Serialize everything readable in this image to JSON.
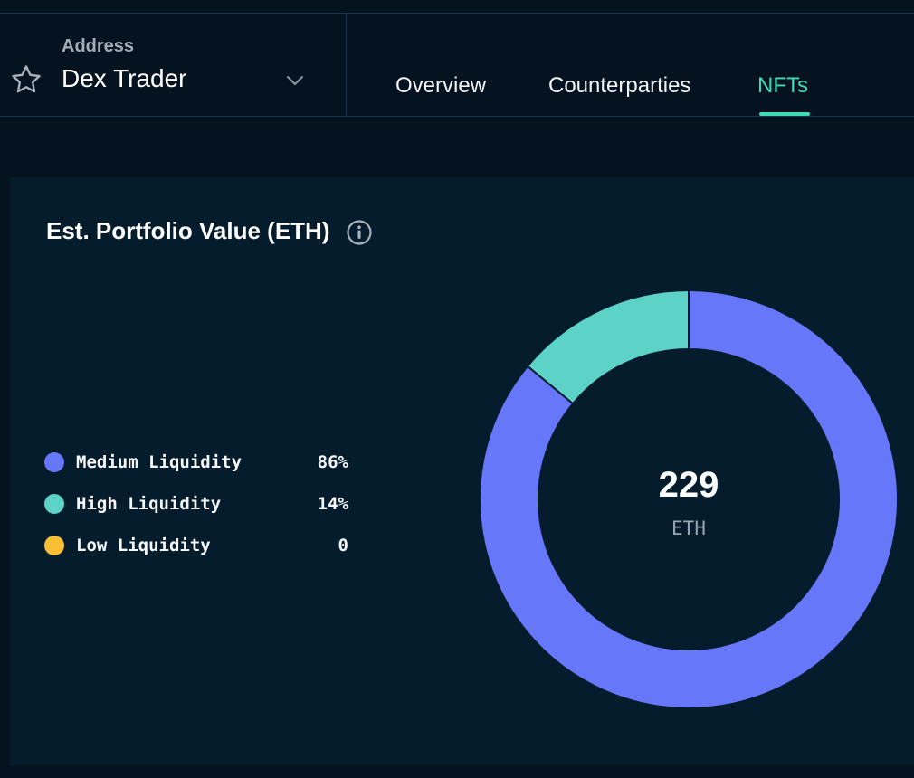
{
  "header": {
    "address_label": "Address",
    "address_name": "Dex Trader",
    "tabs": [
      {
        "label": "Overview",
        "active": false
      },
      {
        "label": "Counterparties",
        "active": false
      },
      {
        "label": "NFTs",
        "active": true
      }
    ],
    "icons": {
      "favorite": "star-icon",
      "dropdown": "chevron-down-icon"
    }
  },
  "card": {
    "title": "Est. Portfolio Value (ETH)",
    "info_icon": "info-icon"
  },
  "legend": [
    {
      "label": "Medium Liquidity",
      "value": "86%",
      "color": "#6677fa"
    },
    {
      "label": "High Liquidity",
      "value": "14%",
      "color": "#5dd3c7"
    },
    {
      "label": "Low Liquidity",
      "value": "0",
      "color": "#f8bf35"
    }
  ],
  "donut": {
    "center_value": "229",
    "center_unit": "ETH"
  },
  "colors": {
    "background": "#04131f",
    "card": "#051c2c",
    "accent": "#3ddcb6"
  },
  "chart_data": {
    "type": "pie",
    "title": "Est. Portfolio Value (ETH)",
    "categories": [
      "Medium Liquidity",
      "High Liquidity",
      "Low Liquidity"
    ],
    "values": [
      86,
      14,
      0
    ],
    "unit": "%",
    "colors": [
      "#6677fa",
      "#5dd3c7",
      "#f8bf35"
    ],
    "total": 229,
    "total_unit": "ETH"
  }
}
